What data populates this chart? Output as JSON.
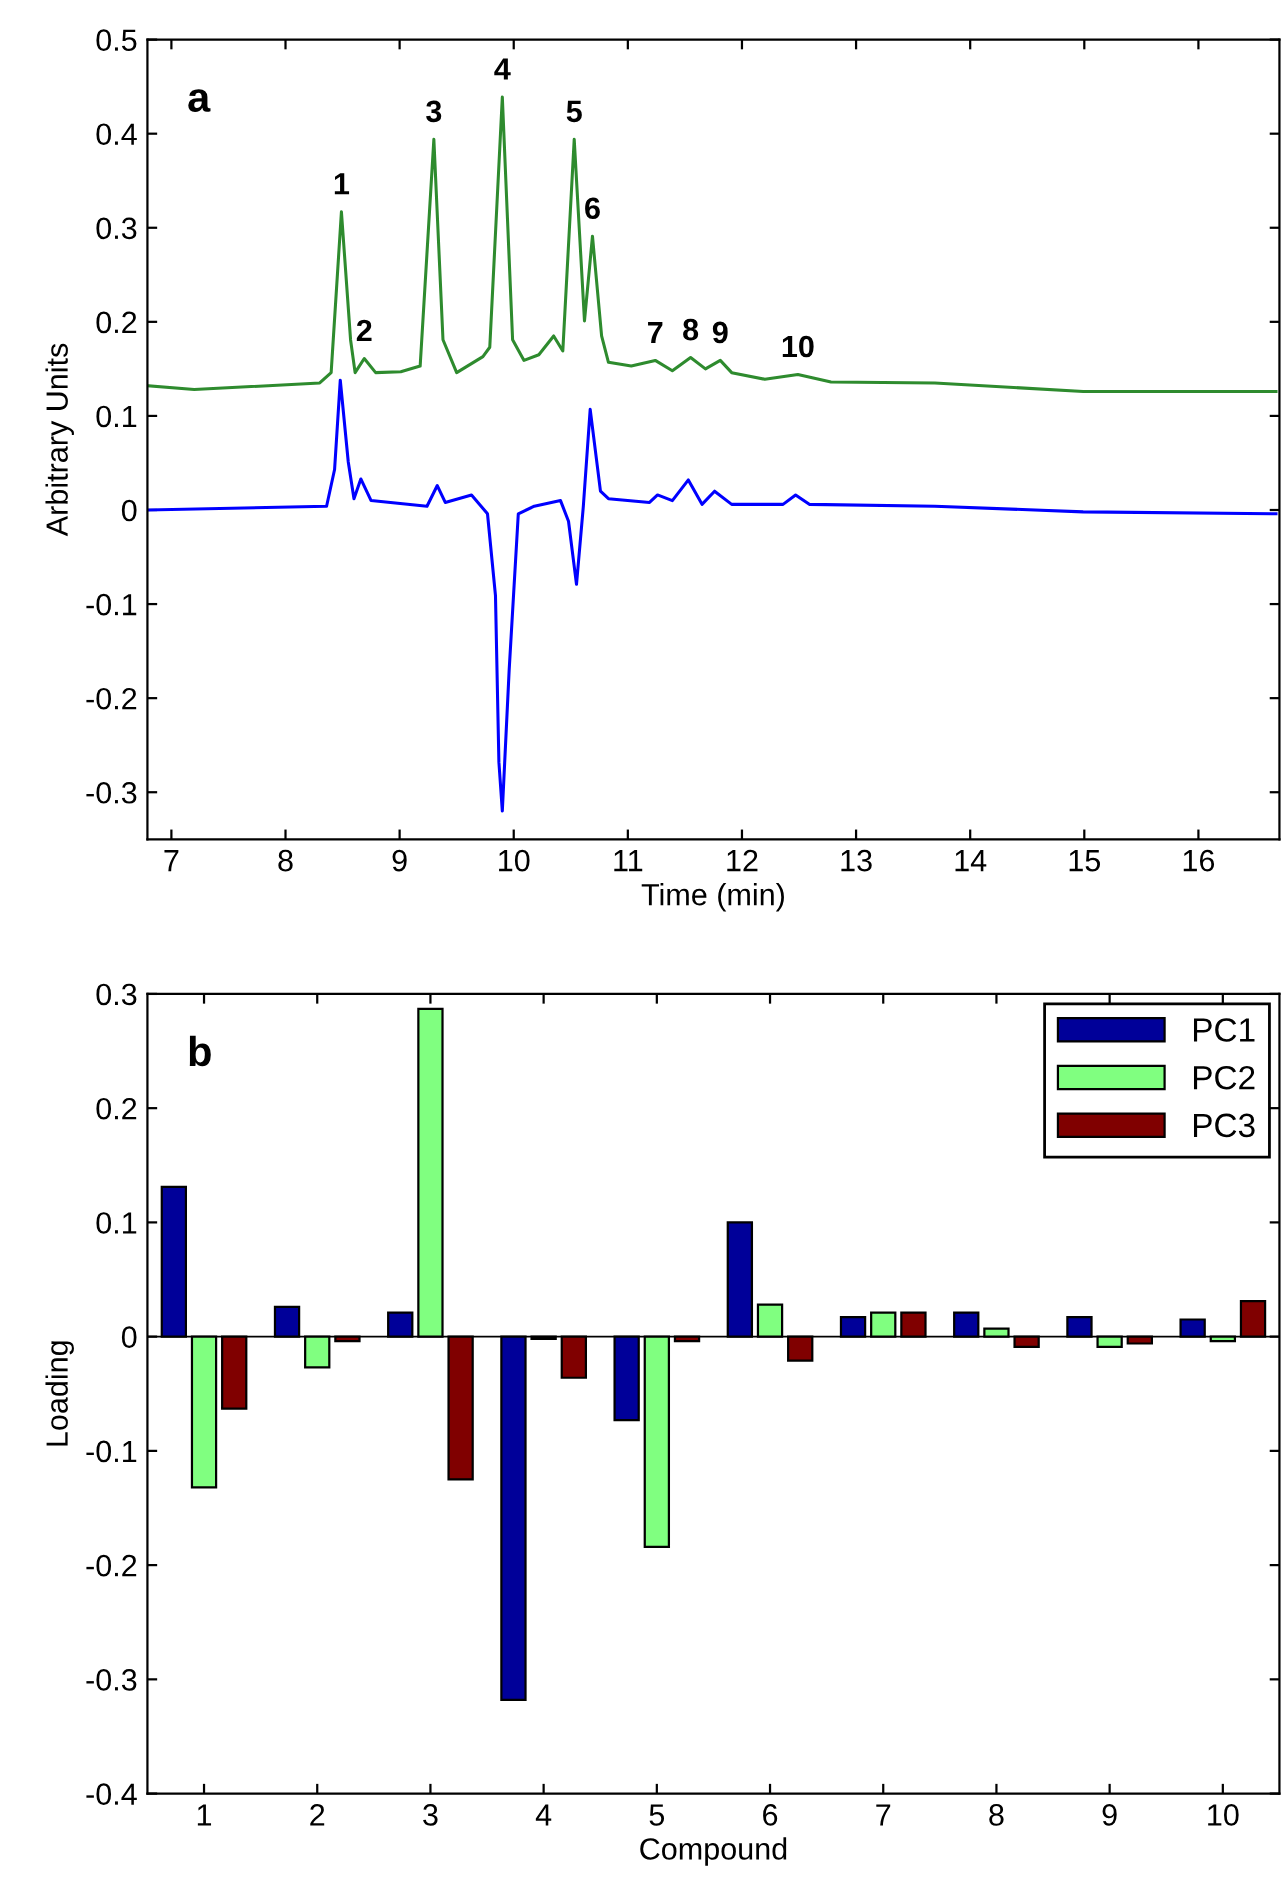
{
  "chart_data": [
    {
      "type": "line",
      "xlabel": "Time (min)",
      "ylabel": "Arbitrary Units",
      "xlim": [
        6.79,
        16.71
      ],
      "ylim": [
        -0.35,
        0.5
      ],
      "xticks": [
        7,
        8,
        9,
        10,
        11,
        12,
        13,
        14,
        15,
        16
      ],
      "yticks": [
        -0.3,
        -0.2,
        -0.1,
        0,
        0.1,
        0.2,
        0.3,
        0.4,
        0.5
      ],
      "series": [
        {
          "color": "#2e8b2e",
          "x": [
            6.8,
            7.2,
            8.3,
            8.4,
            8.49,
            8.57,
            8.61,
            8.69,
            8.79,
            9.01,
            9.18,
            9.3,
            9.38,
            9.5,
            9.73,
            9.79,
            9.9,
            9.99,
            10.09,
            10.22,
            10.35,
            10.43,
            10.53,
            10.62,
            10.69,
            10.77,
            10.83,
            11.03,
            11.24,
            11.39,
            11.55,
            11.68,
            11.81,
            11.91,
            12.2,
            12.49,
            12.78,
            13.69,
            14.99,
            16.68
          ],
          "values": [
            0.132,
            0.128,
            0.135,
            0.146,
            0.317,
            0.181,
            0.146,
            0.161,
            0.146,
            0.147,
            0.153,
            0.394,
            0.181,
            0.146,
            0.163,
            0.173,
            0.439,
            0.181,
            0.159,
            0.165,
            0.185,
            0.169,
            0.394,
            0.201,
            0.291,
            0.185,
            0.157,
            0.153,
            0.159,
            0.148,
            0.162,
            0.15,
            0.159,
            0.146,
            0.139,
            0.144,
            0.136,
            0.135,
            0.126,
            0.126
          ]
        },
        {
          "color": "#0000ff",
          "x": [
            6.8,
            8.36,
            8.43,
            8.48,
            8.55,
            8.6,
            8.66,
            8.75,
            9.24,
            9.33,
            9.4,
            9.63,
            9.77,
            9.84,
            9.87,
            9.9,
            9.96,
            10.04,
            10.18,
            10.41,
            10.48,
            10.55,
            10.61,
            10.67,
            10.76,
            10.83,
            11.19,
            11.26,
            11.39,
            11.53,
            11.65,
            11.76,
            11.91,
            12.36,
            12.47,
            12.59,
            13.69,
            14.99,
            16.68
          ],
          "values": [
            0,
            0.004,
            0.043,
            0.138,
            0.051,
            0.012,
            0.033,
            0.01,
            0.004,
            0.026,
            0.008,
            0.016,
            -0.004,
            -0.091,
            -0.268,
            -0.32,
            -0.17,
            -0.004,
            0.004,
            0.01,
            -0.012,
            -0.079,
            0.004,
            0.107,
            0.02,
            0.012,
            0.008,
            0.016,
            0.01,
            0.032,
            0.006,
            0.02,
            0.006,
            0.006,
            0.016,
            0.006,
            0.004,
            -0.002,
            -0.004
          ]
        }
      ],
      "annotations": [
        "a",
        {
          "text": "1",
          "x": 8.49,
          "y": 0.317
        },
        {
          "text": "2",
          "x": 8.69,
          "y": 0.161
        },
        {
          "text": "3",
          "x": 9.3,
          "y": 0.394
        },
        {
          "text": "4",
          "x": 9.9,
          "y": 0.439
        },
        {
          "text": "5",
          "x": 10.53,
          "y": 0.394
        },
        {
          "text": "6",
          "x": 10.69,
          "y": 0.291
        },
        {
          "text": "7",
          "x": 11.24,
          "y": 0.159
        },
        {
          "text": "8",
          "x": 11.55,
          "y": 0.162
        },
        {
          "text": "9",
          "x": 11.81,
          "y": 0.159
        },
        {
          "text": "10",
          "x": 12.49,
          "y": 0.144
        }
      ]
    },
    {
      "type": "bar",
      "xlabel": "Compound",
      "ylabel": "Loading",
      "categories": [
        "1",
        "2",
        "3",
        "4",
        "5",
        "6",
        "7",
        "8",
        "9",
        "10"
      ],
      "ylim": [
        -0.4,
        0.3
      ],
      "yticks": [
        -0.4,
        -0.3,
        -0.2,
        -0.1,
        0,
        0.1,
        0.2,
        0.3
      ],
      "legend": "top right",
      "series": [
        {
          "name": "PC1",
          "color": "#000099",
          "values": [
            0.131,
            0.026,
            0.021,
            -0.318,
            -0.073,
            0.1,
            0.017,
            0.021,
            0.017,
            0.015
          ]
        },
        {
          "name": "PC2",
          "color": "#80ff80",
          "values": [
            -0.132,
            -0.027,
            0.287,
            -0.002,
            -0.184,
            0.028,
            0.021,
            0.007,
            -0.009,
            -0.004
          ]
        },
        {
          "name": "PC3",
          "color": "#800000",
          "values": [
            -0.063,
            -0.004,
            -0.125,
            -0.036,
            -0.004,
            -0.021,
            0.021,
            -0.009,
            -0.006,
            0.031
          ]
        }
      ],
      "annotations": [
        "b"
      ]
    }
  ]
}
